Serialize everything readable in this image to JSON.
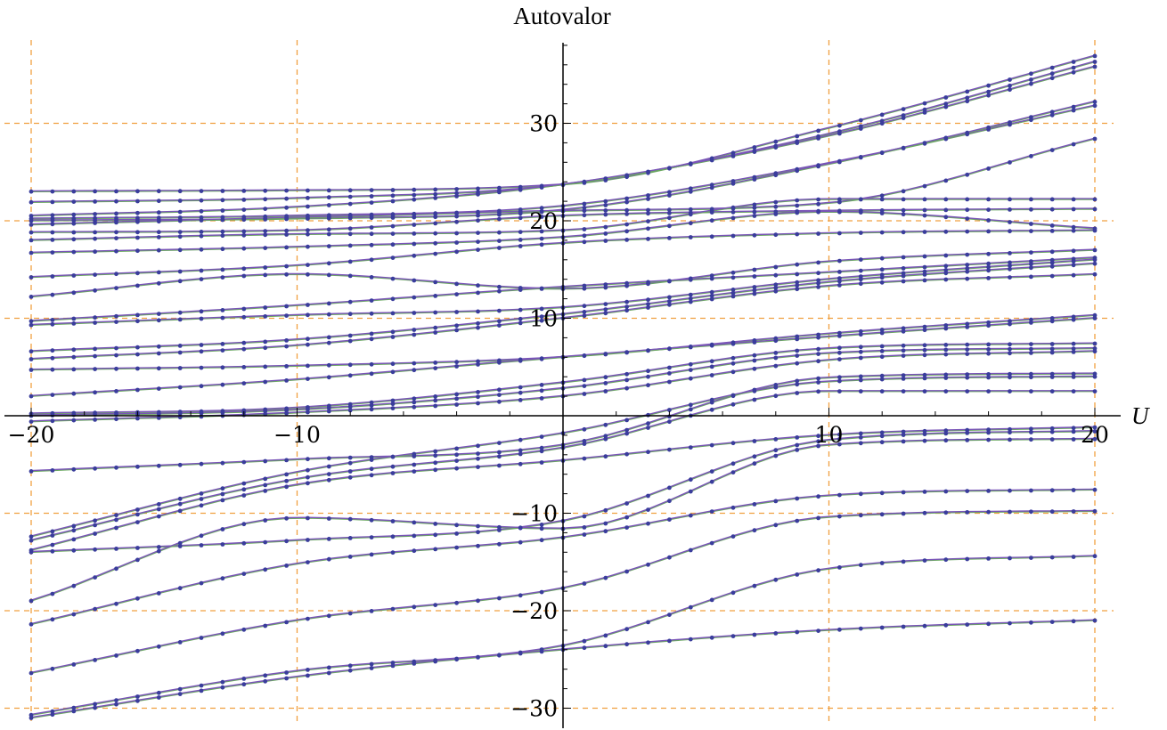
{
  "chart_data": {
    "type": "line",
    "title": "Autovalor",
    "xlabel": "U",
    "ylabel": "",
    "xlim": [
      -20,
      20
    ],
    "ylim": [
      -32,
      38
    ],
    "x_ticks": [
      -20,
      -10,
      10,
      20
    ],
    "y_ticks": [
      -30,
      -20,
      -10,
      10,
      20,
      30
    ],
    "grid": true,
    "grid_style": "dashed",
    "colors": {
      "grid": "#f0a040",
      "points": "#3a3d9c",
      "line_a": "#7a55b8",
      "line_b": "#6aa860",
      "axes": "#000000"
    },
    "x": [
      -20,
      -10,
      0,
      10,
      20
    ],
    "series": [
      {
        "values": [
          23.0,
          23.1,
          23.7,
          29.5,
          36.9
        ]
      },
      {
        "values": [
          21.9,
          22.3,
          23.7,
          28.9,
          36.3
        ]
      },
      {
        "values": [
          20.5,
          21.4,
          23.7,
          28.7,
          35.8
        ]
      },
      {
        "values": [
          20.2,
          20.5,
          21.5,
          25.9,
          31.8
        ]
      },
      {
        "values": [
          20.0,
          20.2,
          21.1,
          25.8,
          32.2
        ]
      },
      {
        "values": [
          19.6,
          20.3,
          21.0,
          21.8,
          28.4
        ]
      },
      {
        "values": [
          18.8,
          19.0,
          20.5,
          21.0,
          21.2
        ]
      },
      {
        "values": [
          18.0,
          18.6,
          19.0,
          22.2,
          22.2
        ]
      },
      {
        "values": [
          16.7,
          17.3,
          18.3,
          20.9,
          19.2
        ]
      },
      {
        "values": [
          14.2,
          15.4,
          17.7,
          18.7,
          19.0
        ]
      },
      {
        "values": [
          12.2,
          14.5,
          13.0,
          15.8,
          17.0
        ]
      },
      {
        "values": [
          9.7,
          11.3,
          13.2,
          14.7,
          16.2
        ]
      },
      {
        "values": [
          9.3,
          10.3,
          11.1,
          14.0,
          16.0
        ]
      },
      {
        "values": [
          6.6,
          7.8,
          10.4,
          13.7,
          15.6
        ]
      },
      {
        "values": [
          5.8,
          7.2,
          10.0,
          13.3,
          14.5
        ]
      },
      {
        "values": [
          4.7,
          5.1,
          6.0,
          8.4,
          10.3
        ]
      },
      {
        "values": [
          2.0,
          3.7,
          6.0,
          8.1,
          10.0
        ]
      },
      {
        "values": [
          0.2,
          0.8,
          3.4,
          6.9,
          7.4
        ]
      },
      {
        "values": [
          0.0,
          0.6,
          2.8,
          6.4,
          6.9
        ]
      },
      {
        "values": [
          -0.6,
          0.3,
          2.0,
          5.7,
          6.6
        ]
      },
      {
        "values": [
          -5.7,
          -4.5,
          -3.0,
          3.9,
          4.3
        ]
      },
      {
        "values": [
          -12.4,
          -5.8,
          -1.8,
          3.5,
          4.0
        ]
      },
      {
        "values": [
          -12.8,
          -6.5,
          -3.3,
          2.5,
          2.5
        ]
      },
      {
        "values": [
          -13.8,
          -7.1,
          -4.6,
          -2.0,
          -1.2
        ]
      },
      {
        "values": [
          -14.0,
          -12.8,
          -10.8,
          -2.5,
          -1.6
        ]
      },
      {
        "values": [
          -19.0,
          -10.5,
          -11.6,
          -3.0,
          -2.4
        ]
      },
      {
        "values": [
          -21.4,
          -15.2,
          -12.5,
          -8.2,
          -7.6
        ]
      },
      {
        "values": [
          -26.4,
          -21.0,
          -17.7,
          -10.4,
          -9.8
        ]
      },
      {
        "values": [
          -30.7,
          -26.2,
          -23.6,
          -15.7,
          -14.4
        ]
      },
      {
        "values": [
          -31.0,
          -26.8,
          -24.0,
          -22.0,
          -21.0
        ]
      }
    ]
  }
}
